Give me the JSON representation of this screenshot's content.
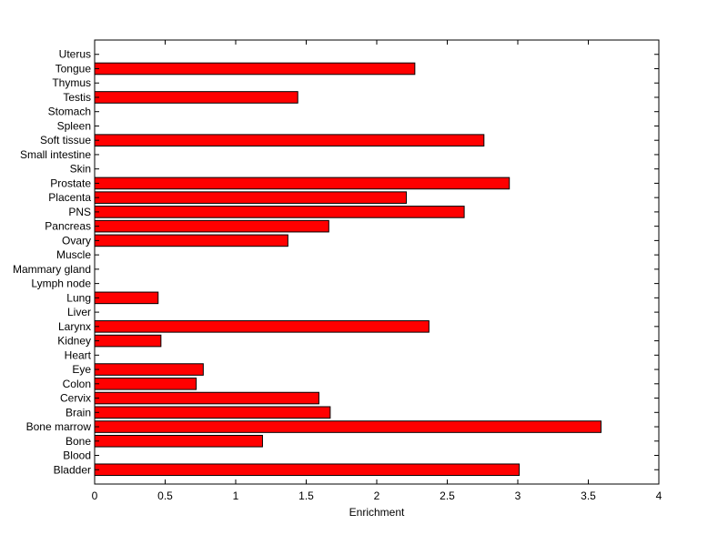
{
  "chart_data": {
    "type": "bar",
    "orientation": "horizontal",
    "categories": [
      "Bladder",
      "Blood",
      "Bone",
      "Bone marrow",
      "Brain",
      "Cervix",
      "Colon",
      "Eye",
      "Heart",
      "Kidney",
      "Larynx",
      "Liver",
      "Lung",
      "Lymph node",
      "Mammary gland",
      "Muscle",
      "Ovary",
      "Pancreas",
      "PNS",
      "Placenta",
      "Prostate",
      "Skin",
      "Small intestine",
      "Soft tissue",
      "Spleen",
      "Stomach",
      "Testis",
      "Thymus",
      "Tongue",
      "Uterus"
    ],
    "values": [
      3.01,
      0,
      1.19,
      3.59,
      1.67,
      1.59,
      0.72,
      0.77,
      0,
      0.47,
      2.37,
      0,
      0.45,
      0,
      0,
      0,
      1.37,
      1.66,
      2.62,
      2.21,
      2.94,
      0,
      0,
      2.76,
      0,
      0,
      1.44,
      0,
      2.27,
      0
    ],
    "xlabel": "Enrichment",
    "ylabel": "",
    "title": "",
    "xlim": [
      0,
      4
    ],
    "xticks": [
      "0",
      "0.5",
      "1",
      "1.5",
      "2",
      "2.5",
      "3",
      "3.5",
      "4"
    ],
    "grid": false,
    "bar_color": "#ff0000",
    "edge_color": "#000000"
  }
}
